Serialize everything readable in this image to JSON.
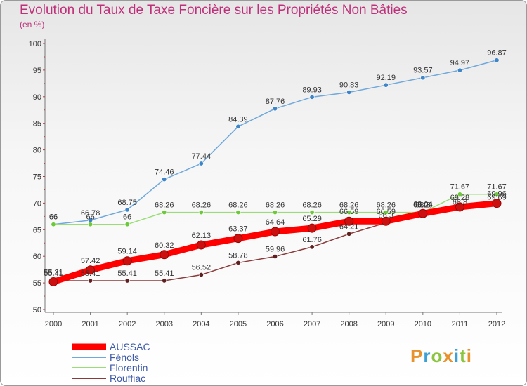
{
  "title": "Evolution du Taux de Taxe Foncière sur les Propriétés Non Bâties",
  "subtitle": "(en %)",
  "logo": {
    "letters": [
      "P",
      "r",
      "o",
      "x",
      "i",
      "t",
      "i"
    ],
    "colors": [
      "#e8922d",
      "#3aa0d6",
      "#8bc43f",
      "#e8922d",
      "#3aa0d6",
      "#8bc43f",
      "#e8922d"
    ]
  },
  "chart_data": {
    "type": "line",
    "x": [
      2000,
      2001,
      2002,
      2003,
      2004,
      2005,
      2006,
      2007,
      2008,
      2009,
      2010,
      2011,
      2012
    ],
    "ylim": [
      50,
      100
    ],
    "yticks": [
      50,
      55,
      60,
      65,
      70,
      75,
      80,
      85,
      90,
      95,
      100
    ],
    "grid": false,
    "legend_position": "bottom-left",
    "series": [
      {
        "name": "AUSSAC",
        "color": "#ff0000",
        "marker": "#cc1010",
        "width": 9,
        "values": [
          55.21,
          57.42,
          59.14,
          60.32,
          62.13,
          63.37,
          64.64,
          65.29,
          66.59,
          66.59,
          68.04,
          69.28,
          69.96
        ],
        "labels": [
          "55.21",
          "57.42",
          "59.14",
          "60.32",
          "62.13",
          "63.37",
          "64.64",
          "65.29",
          "66.59",
          "66.59",
          "68.04",
          "69.28",
          "69.96"
        ]
      },
      {
        "name": "Fénols",
        "color": "#6fa8dc",
        "marker": "#3d85c6",
        "width": 1.5,
        "values": [
          66,
          66.78,
          68.75,
          74.46,
          77.44,
          84.39,
          87.76,
          89.93,
          90.83,
          92.19,
          93.57,
          94.97,
          96.87
        ],
        "labels": [
          "66",
          "66.78",
          "68.75",
          "74.46",
          "77.44",
          "84.39",
          "87.76",
          "89.93",
          "90.83",
          "92.19",
          "93.57",
          "94.97",
          "96.87"
        ]
      },
      {
        "name": "Florentin",
        "color": "#99dd77",
        "marker": "#6ec83c",
        "width": 1.5,
        "values": [
          66,
          66,
          66,
          68.26,
          68.26,
          68.26,
          68.26,
          68.26,
          68.26,
          68.26,
          68.26,
          71.67,
          71.67
        ],
        "labels": [
          "66",
          "66",
          "66",
          "68.26",
          "68.26",
          "68.26",
          "68.26",
          "68.26",
          "68.26",
          "68.26",
          "68.26",
          "71.67",
          "71.67"
        ]
      },
      {
        "name": "Rouffiac",
        "color": "#8b3a3a",
        "marker": "#5e1f1f",
        "width": 1.5,
        "values": [
          55.41,
          55.41,
          55.41,
          55.41,
          56.52,
          58.78,
          59.96,
          61.76,
          64.21,
          66.3,
          68.3,
          68.8,
          69.69
        ],
        "labels": [
          "55.41",
          "55.41",
          "55.41",
          "55.41",
          "56.52",
          "58.78",
          "59.96",
          "61.76",
          "64.21",
          "66.3",
          "68.3",
          "68.8",
          "69.69"
        ]
      }
    ]
  }
}
